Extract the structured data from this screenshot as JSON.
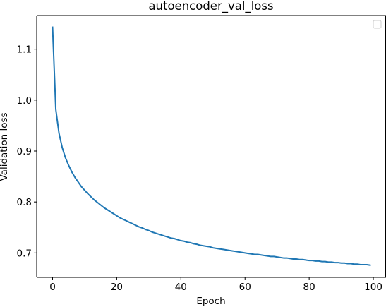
{
  "chart_data": {
    "type": "line",
    "title": "autoencoder_val_loss",
    "xlabel": "Epoch",
    "ylabel": "Validation loss",
    "xlim": [
      -4.95,
      103.95
    ],
    "ylim": [
      0.652,
      1.166
    ],
    "x_ticks": [
      0,
      20,
      40,
      60,
      80,
      100
    ],
    "y_ticks": [
      0.7,
      0.8,
      0.9,
      1.0,
      1.1
    ],
    "x_tick_labels": [
      "0",
      "20",
      "40",
      "60",
      "80",
      "100"
    ],
    "y_tick_labels": [
      "0.7",
      "0.8",
      "0.9",
      "1.0",
      "1.1"
    ],
    "grid": false,
    "legend": {
      "placement": "top-right",
      "entries": []
    },
    "series": [
      {
        "color": "#1f77b4",
        "x": [
          0,
          1,
          2,
          3,
          4,
          5,
          6,
          7,
          8,
          9,
          10,
          11,
          12,
          13,
          14,
          15,
          16,
          17,
          18,
          19,
          20,
          21,
          22,
          23,
          24,
          25,
          26,
          27,
          28,
          29,
          30,
          31,
          32,
          33,
          34,
          35,
          36,
          37,
          38,
          39,
          40,
          41,
          42,
          43,
          44,
          45,
          46,
          47,
          48,
          49,
          50,
          51,
          52,
          53,
          54,
          55,
          56,
          57,
          58,
          59,
          60,
          61,
          62,
          63,
          64,
          65,
          66,
          67,
          68,
          69,
          70,
          71,
          72,
          73,
          74,
          75,
          76,
          77,
          78,
          79,
          80,
          81,
          82,
          83,
          84,
          85,
          86,
          87,
          88,
          89,
          90,
          91,
          92,
          93,
          94,
          95,
          96,
          97,
          98,
          99
        ],
        "y": [
          1.143,
          0.982,
          0.935,
          0.907,
          0.887,
          0.872,
          0.859,
          0.848,
          0.839,
          0.83,
          0.823,
          0.816,
          0.81,
          0.804,
          0.799,
          0.794,
          0.789,
          0.785,
          0.781,
          0.777,
          0.773,
          0.769,
          0.766,
          0.763,
          0.76,
          0.757,
          0.754,
          0.751,
          0.749,
          0.746,
          0.744,
          0.741,
          0.739,
          0.737,
          0.735,
          0.733,
          0.731,
          0.729,
          0.728,
          0.726,
          0.724,
          0.723,
          0.721,
          0.72,
          0.718,
          0.717,
          0.715,
          0.714,
          0.713,
          0.712,
          0.71,
          0.709,
          0.708,
          0.707,
          0.706,
          0.705,
          0.704,
          0.703,
          0.702,
          0.701,
          0.7,
          0.699,
          0.698,
          0.697,
          0.697,
          0.696,
          0.695,
          0.694,
          0.693,
          0.693,
          0.692,
          0.691,
          0.69,
          0.69,
          0.689,
          0.688,
          0.688,
          0.687,
          0.687,
          0.686,
          0.685,
          0.685,
          0.684,
          0.684,
          0.683,
          0.683,
          0.682,
          0.682,
          0.681,
          0.681,
          0.68,
          0.68,
          0.679,
          0.679,
          0.678,
          0.678,
          0.677,
          0.677,
          0.677,
          0.676
        ]
      }
    ]
  }
}
